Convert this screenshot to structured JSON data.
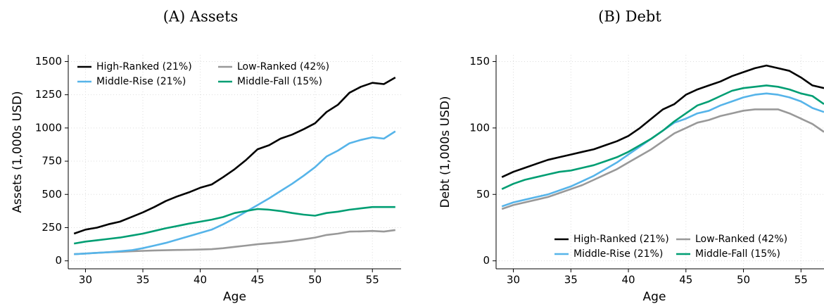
{
  "chart_data": [
    {
      "type": "line",
      "title": "(A) Assets",
      "x_label": "Age",
      "y_label": "Assets (1,000s USD)",
      "x": [
        29,
        30,
        31,
        32,
        33,
        34,
        35,
        36,
        37,
        38,
        39,
        40,
        41,
        42,
        43,
        44,
        45,
        46,
        47,
        48,
        49,
        50,
        51,
        52,
        53,
        54,
        55,
        56,
        57
      ],
      "xlim": [
        28.5,
        57.5
      ],
      "xticks": [
        30,
        35,
        40,
        45,
        50,
        55
      ],
      "ylim": [
        -60,
        1550
      ],
      "yticks": [
        0,
        250,
        500,
        750,
        1000,
        1250,
        1500
      ],
      "grid": true,
      "legend": "upper left",
      "series": [
        {
          "name": "High-Ranked (21%)",
          "color": "#000000",
          "values": [
            205,
            235,
            250,
            275,
            295,
            330,
            365,
            405,
            450,
            485,
            515,
            550,
            575,
            630,
            690,
            760,
            840,
            870,
            920,
            950,
            990,
            1035,
            1120,
            1175,
            1265,
            1310,
            1340,
            1330,
            1380
          ]
        },
        {
          "name": "Low-Ranked (42%)",
          "color": "#999999",
          "values": [
            50,
            55,
            60,
            65,
            68,
            72,
            75,
            78,
            80,
            82,
            83,
            85,
            88,
            95,
            105,
            115,
            125,
            132,
            140,
            150,
            162,
            175,
            195,
            205,
            220,
            222,
            225,
            220,
            232
          ]
        },
        {
          "name": "Middle-Rise (21%)",
          "color": "#56b4e9",
          "values": [
            50,
            55,
            60,
            65,
            72,
            80,
            95,
            115,
            135,
            160,
            185,
            210,
            235,
            275,
            320,
            370,
            420,
            470,
            525,
            580,
            640,
            705,
            785,
            830,
            885,
            910,
            930,
            920,
            975
          ]
        },
        {
          "name": "Middle-Fall (15%)",
          "color": "#009e73",
          "values": [
            130,
            145,
            155,
            165,
            175,
            190,
            205,
            225,
            245,
            262,
            280,
            295,
            310,
            330,
            360,
            375,
            390,
            385,
            375,
            360,
            348,
            340,
            360,
            370,
            385,
            395,
            405,
            405,
            405
          ]
        }
      ]
    },
    {
      "type": "line",
      "title": "(B) Debt",
      "x_label": "Age",
      "y_label": "Debt (1,000s USD)",
      "x": [
        29,
        30,
        31,
        32,
        33,
        34,
        35,
        36,
        37,
        38,
        39,
        40,
        41,
        42,
        43,
        44,
        45,
        46,
        47,
        48,
        49,
        50,
        51,
        52,
        53,
        54,
        55,
        56,
        57
      ],
      "xlim": [
        28.5,
        57
      ],
      "xticks": [
        30,
        35,
        40,
        45,
        50,
        55
      ],
      "ylim": [
        -6,
        155
      ],
      "yticks": [
        0,
        50,
        100,
        150
      ],
      "grid": true,
      "legend": "lower right",
      "series": [
        {
          "name": "High-Ranked (21%)",
          "color": "#000000",
          "values": [
            63,
            67,
            70,
            73,
            76,
            78,
            80,
            82,
            84,
            87,
            90,
            94,
            100,
            107,
            114,
            118,
            125,
            129,
            132,
            135,
            139,
            142,
            145,
            147,
            145,
            143,
            138,
            132,
            130
          ]
        },
        {
          "name": "Low-Ranked (42%)",
          "color": "#999999",
          "values": [
            39,
            42,
            44,
            46,
            48,
            51,
            54,
            57,
            61,
            65,
            69,
            74,
            79,
            84,
            90,
            96,
            100,
            104,
            106,
            109,
            111,
            113,
            114,
            114,
            114,
            111,
            107,
            103,
            97
          ]
        },
        {
          "name": "Middle-Rise (21%)",
          "color": "#56b4e9",
          "values": [
            41,
            44,
            46,
            48,
            50,
            53,
            56,
            60,
            64,
            69,
            74,
            80,
            86,
            92,
            98,
            104,
            107,
            111,
            113,
            117,
            120,
            123,
            125,
            126,
            125,
            123,
            120,
            115,
            112
          ]
        },
        {
          "name": "Middle-Fall (15%)",
          "color": "#009e73",
          "values": [
            54,
            58,
            61,
            63,
            65,
            67,
            68,
            70,
            72,
            75,
            78,
            82,
            87,
            92,
            98,
            105,
            111,
            117,
            120,
            124,
            128,
            130,
            131,
            132,
            131,
            129,
            126,
            124,
            118
          ]
        }
      ]
    }
  ]
}
